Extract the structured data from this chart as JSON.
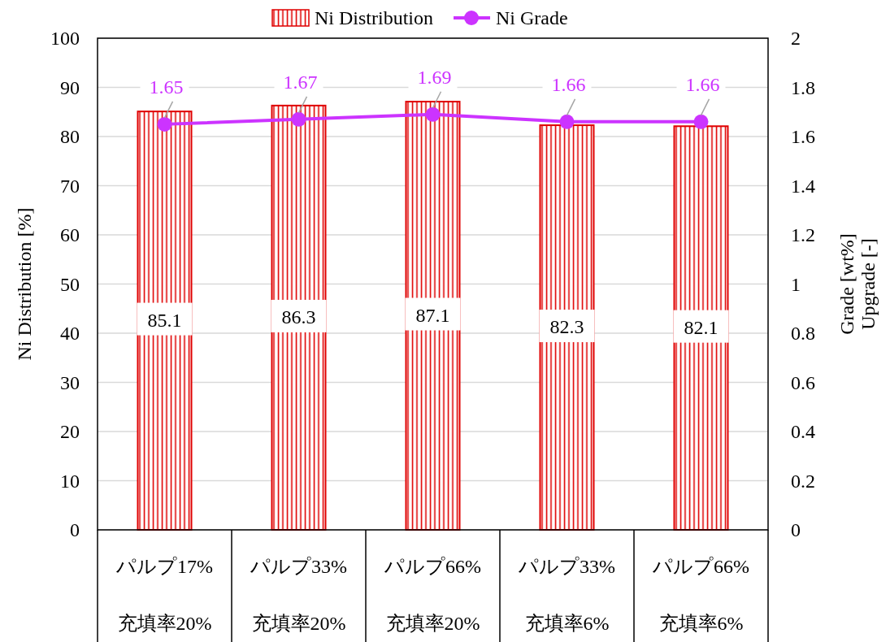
{
  "chart_data": {
    "type": "bar",
    "categories": [
      "パルプ17%\n充填率20%",
      "パルプ33%\n充填率20%",
      "パルプ66%\n充填率20%",
      "パルプ33%\n充填率6%",
      "パルプ66%\n充填率6%"
    ],
    "series": [
      {
        "name": "Ni Distribution",
        "color": "#e00000",
        "values": [
          85.1,
          86.3,
          87.1,
          82.3,
          82.1
        ]
      },
      {
        "name": "Ni Grade",
        "type": "line",
        "axis": "y2",
        "color": "#cc33ff",
        "values": [
          1.65,
          1.67,
          1.69,
          1.66,
          1.66
        ]
      }
    ],
    "ylabel": "Ni Distribution [%]",
    "y2label": "Grade [wt%]\nUpgrade [-]",
    "ylim": [
      0,
      100
    ],
    "yticks": [
      0,
      10,
      20,
      30,
      40,
      50,
      60,
      70,
      80,
      90,
      100
    ],
    "y2lim": [
      0,
      2
    ],
    "y2ticks": [
      0,
      0.2,
      0.4,
      0.6,
      0.8,
      1,
      1.2,
      1.4,
      1.6,
      1.8,
      2
    ],
    "grid": "y",
    "legend": "top",
    "data_labels": true,
    "marker": "circle"
  }
}
